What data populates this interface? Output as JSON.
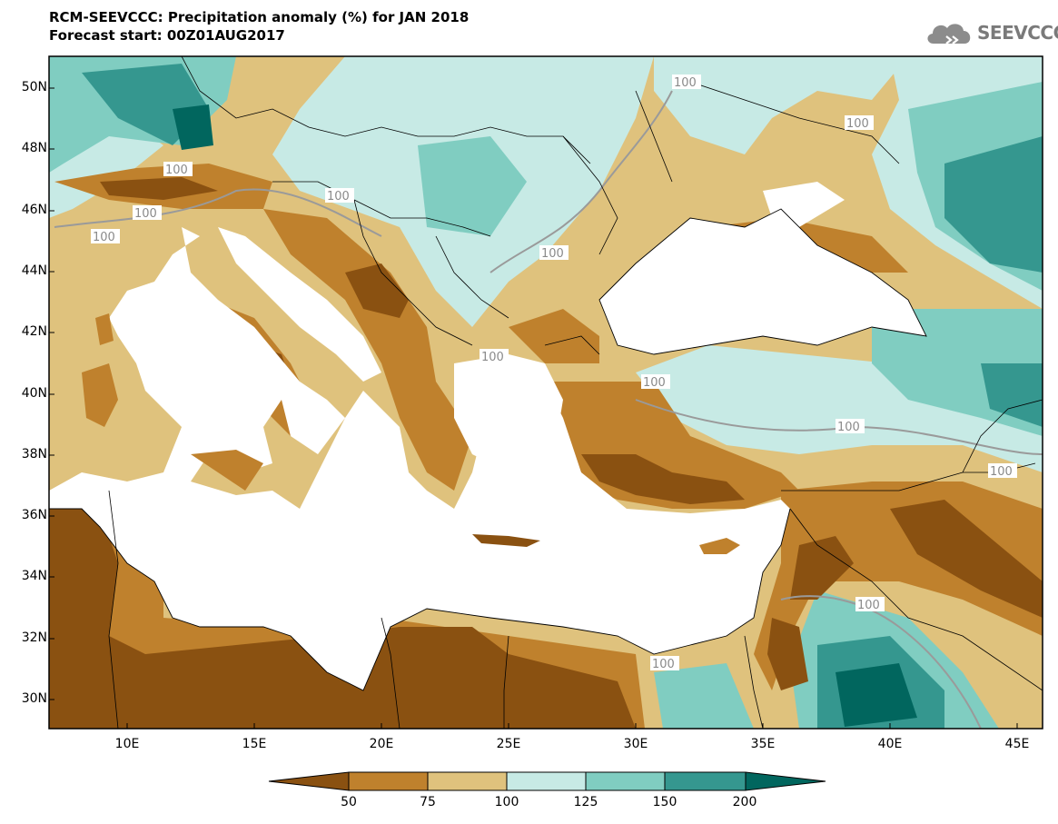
{
  "title": {
    "line1": "RCM-SEEVCCC: Precipitation anomaly (%) for JAN 2018",
    "line2": "Forecast start: 00Z01AUG2017"
  },
  "logo": {
    "text": "SEEVCCC",
    "icon": "cloud-icon"
  },
  "map": {
    "variable": "Precipitation anomaly (%)",
    "lat_labels": [
      "50N",
      "48N",
      "46N",
      "44N",
      "42N",
      "40N",
      "38N",
      "36N",
      "34N",
      "32N",
      "30N"
    ],
    "lon_labels": [
      "10E",
      "15E",
      "20E",
      "25E",
      "30E",
      "35E",
      "40E",
      "45E"
    ],
    "contour_labels": [
      "100",
      "100",
      "100",
      "100",
      "100",
      "100",
      "100",
      "100",
      "100",
      "100",
      "100",
      "100",
      "100"
    ]
  },
  "colorbar": {
    "labels": [
      "50",
      "75",
      "100",
      "125",
      "150",
      "200"
    ],
    "colors": [
      "#8a5111",
      "#bf812d",
      "#dfc27d",
      "#c7eae5",
      "#80cdc1",
      "#35978f",
      "#01665e"
    ]
  }
}
